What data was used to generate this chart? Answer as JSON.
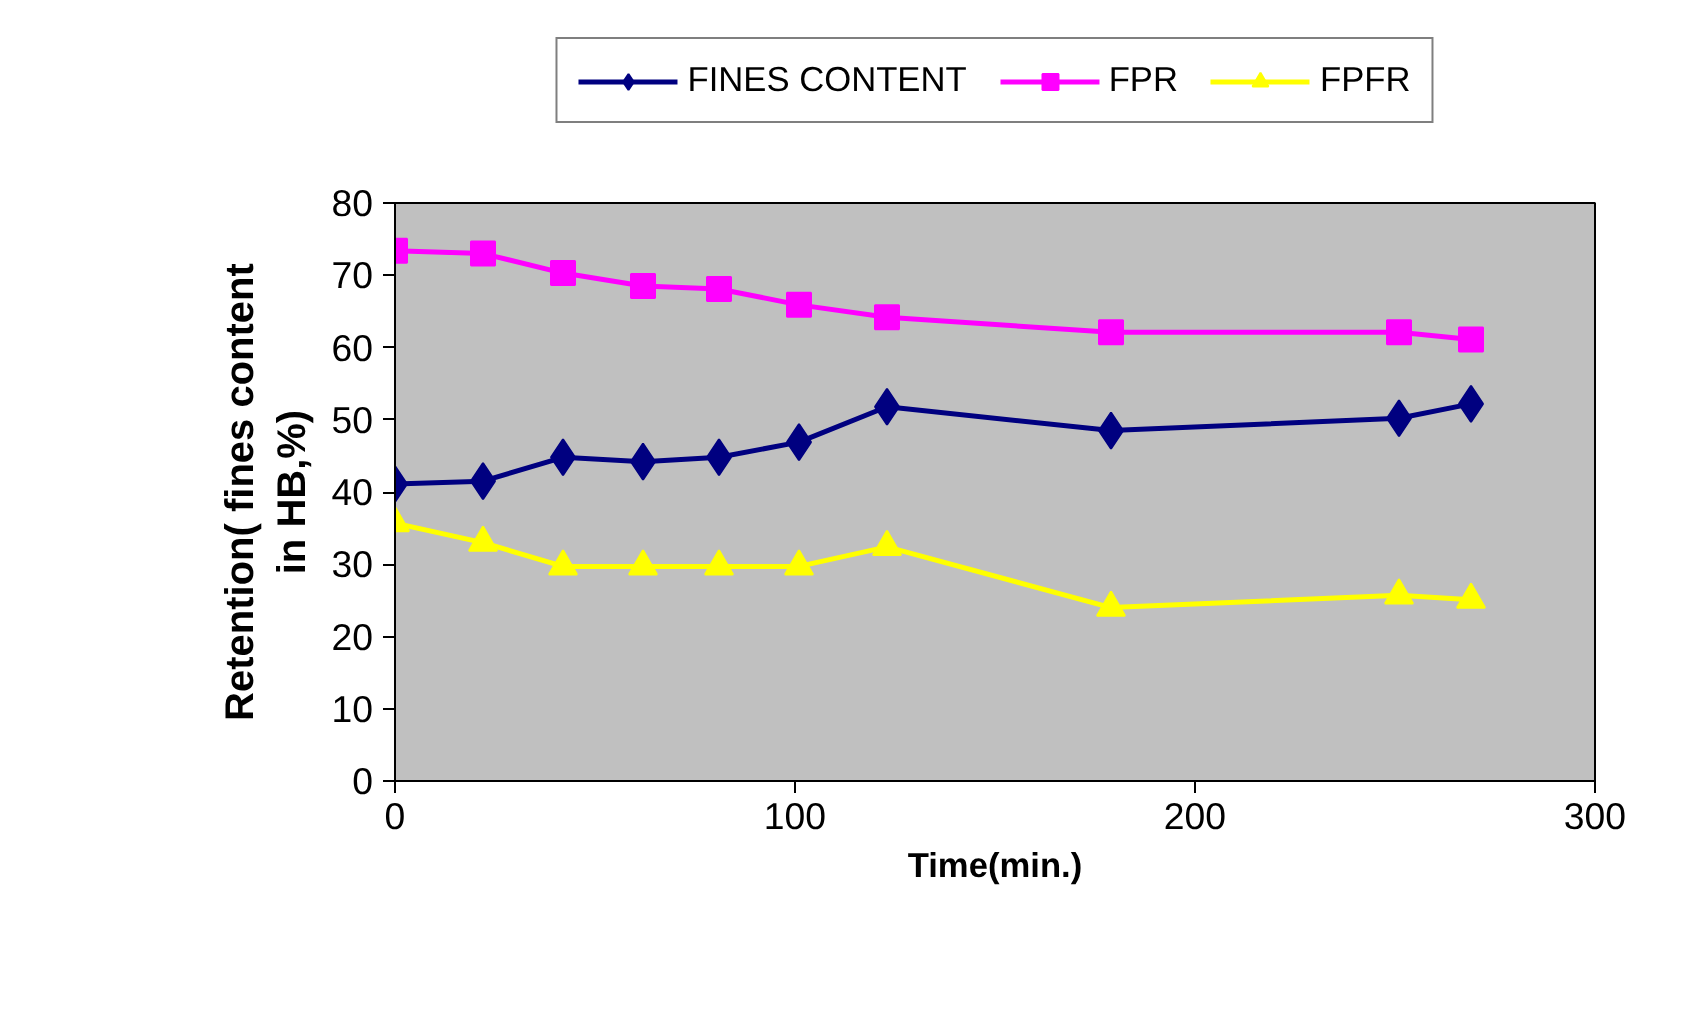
{
  "chart_data": {
    "type": "line",
    "xlabel": "Time(min.)",
    "ylabel": "Retention( fines content in HB,%)",
    "x": [
      0,
      22,
      42,
      62,
      81,
      101,
      123,
      179,
      251,
      269
    ],
    "series": [
      {
        "name": "FINES CONTENT",
        "color": "#000080",
        "marker": "diamond",
        "values": [
          41.1,
          41.5,
          44.8,
          44.2,
          44.8,
          46.9,
          51.8,
          48.5,
          50.2,
          52.2
        ]
      },
      {
        "name": "FPR",
        "color": "#ff00ff",
        "marker": "square",
        "values": [
          73.4,
          73.0,
          70.3,
          68.5,
          68.1,
          65.9,
          64.2,
          62.1,
          62.1,
          61.1
        ]
      },
      {
        "name": "FPFR",
        "color": "#ffff00",
        "marker": "triangle",
        "values": [
          35.7,
          33.0,
          29.7,
          29.7,
          29.7,
          29.7,
          32.4,
          24.0,
          25.7,
          25.1
        ]
      }
    ],
    "xlim": [
      0,
      300
    ],
    "xticks": [
      0,
      100,
      200,
      300
    ],
    "ylim": [
      0,
      80
    ],
    "yticks": [
      0,
      10,
      20,
      30,
      40,
      50,
      60,
      70,
      80
    ],
    "grid": false,
    "legend": "top",
    "line_style": "solid"
  }
}
